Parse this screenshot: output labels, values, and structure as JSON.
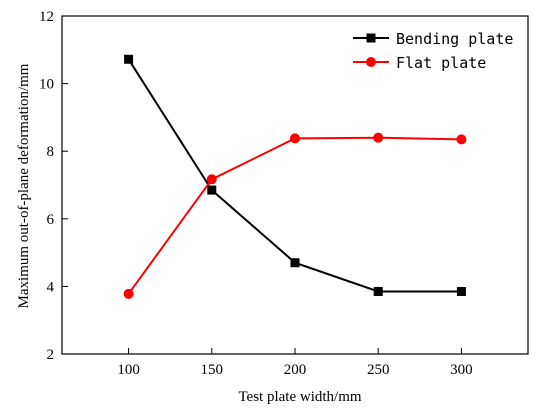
{
  "chart_data": {
    "type": "line",
    "xlabel": "Test plate width/mm",
    "ylabel": "Maximum out-of-plane deformation/mm",
    "xlim": [
      60,
      340
    ],
    "ylim": [
      2,
      12
    ],
    "x_ticks": [
      100,
      150,
      200,
      250,
      300
    ],
    "y_ticks": [
      2,
      4,
      6,
      8,
      10,
      12
    ],
    "grid": false,
    "legend_position": "top-right",
    "x": [
      100,
      150,
      200,
      250,
      300
    ],
    "series": [
      {
        "name": "Bending plate",
        "color": "#000000",
        "marker": "square",
        "values": [
          10.72,
          6.85,
          4.7,
          3.85,
          3.85
        ]
      },
      {
        "name": "Flat plate",
        "color": "#ff0000",
        "marker": "circle",
        "values": [
          3.78,
          7.17,
          8.38,
          8.4,
          8.35
        ]
      }
    ]
  }
}
